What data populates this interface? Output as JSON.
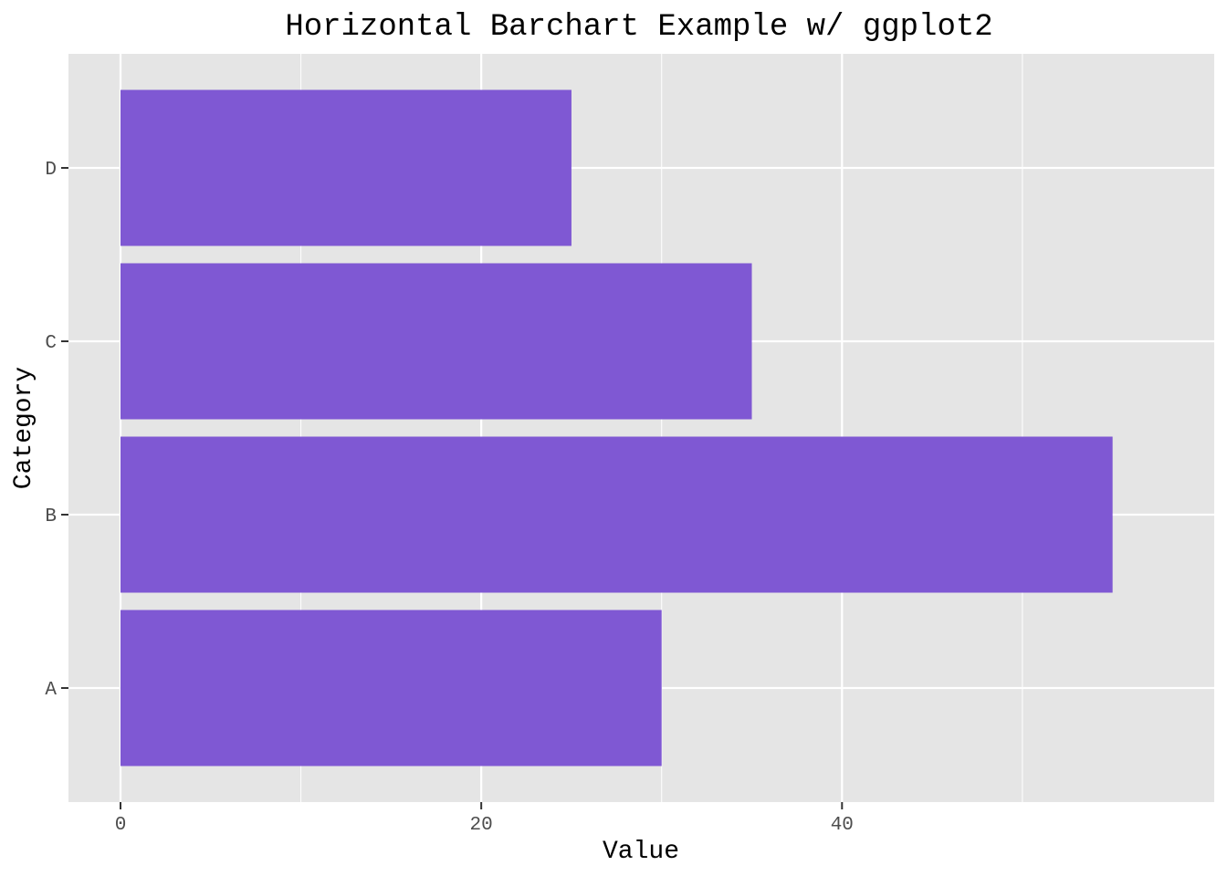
{
  "chart_data": {
    "type": "bar",
    "orientation": "horizontal",
    "title": "Horizontal Barchart Example w/ ggplot2",
    "xlabel": "Value",
    "ylabel": "Category",
    "categories": [
      "A",
      "B",
      "C",
      "D"
    ],
    "values": [
      30,
      55,
      35,
      25
    ],
    "xlim": [
      0,
      57.75
    ],
    "x_ticks": [
      0,
      20,
      40
    ],
    "x_tick_labels": [
      "0",
      "20",
      "40"
    ],
    "grid": true,
    "legend": "none",
    "colors": {
      "bar": "#7f58d3",
      "panel": "#e5e5e5",
      "grid": "#ffffff",
      "tick_text": "#4d4d4d"
    }
  }
}
